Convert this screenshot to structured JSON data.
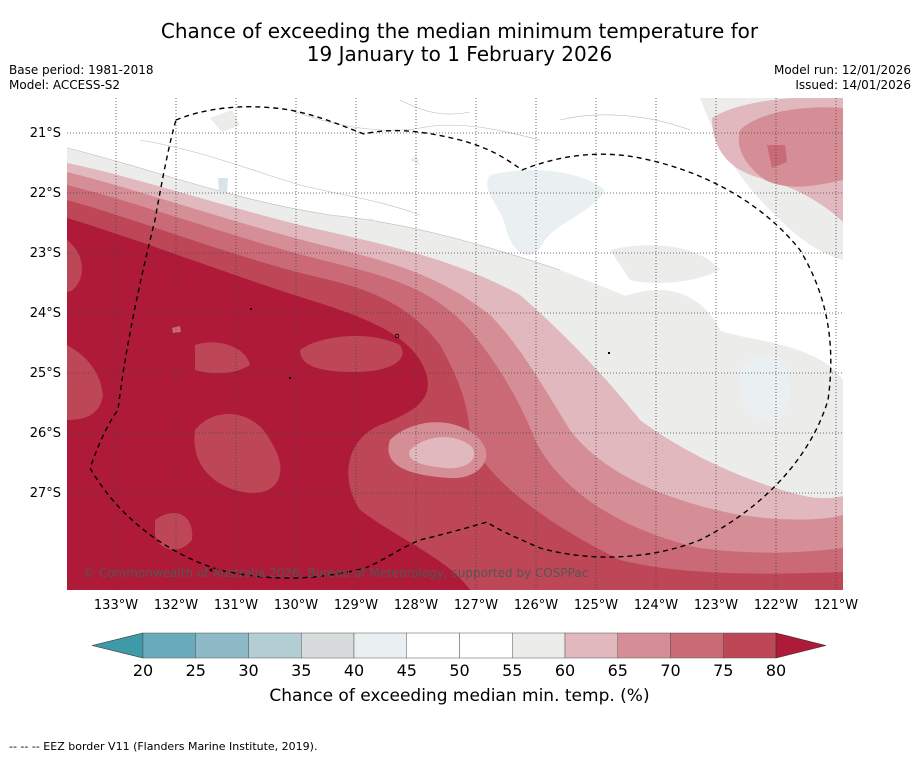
{
  "title": {
    "line1": "Chance of exceeding the median minimum temperature for",
    "line2": "19 January to 1 February 2026"
  },
  "meta": {
    "base_period": "Base period: 1981-2018",
    "model": "Model: ACCESS-S2",
    "model_run": "Model run: 12/01/2026",
    "issued": "Issued: 14/01/2026"
  },
  "map": {
    "latitudes": [
      "21°S",
      "22°S",
      "23°S",
      "24°S",
      "25°S",
      "26°S",
      "27°S"
    ],
    "longitudes": [
      "133°W",
      "132°W",
      "131°W",
      "130°W",
      "129°W",
      "128°W",
      "127°W",
      "126°W",
      "125°W",
      "124°W",
      "123°W",
      "122°W",
      "121°W"
    ],
    "copyright": "© Commonwealth of Australia 2026, Bureau of Meteorology, supported by COSPPac"
  },
  "colorbar": {
    "labels": [
      "20",
      "25",
      "30",
      "35",
      "40",
      "45",
      "50",
      "55",
      "60",
      "65",
      "70",
      "75",
      "80"
    ],
    "colors": [
      "#3e9aa8",
      "#6aabbb",
      "#8dbac6",
      "#b3ced3",
      "#d8dbdb",
      "#eaf0f2",
      "#ffffff",
      "#ffffff",
      "#ececea",
      "#e0b8be",
      "#d58e96",
      "#ca6a76",
      "#bd4756",
      "#ae1a38"
    ],
    "title": "Chance of exceeding median min. temp. (%)"
  },
  "footnote": "--  --  -- EEZ border V11 (Flanders Marine Institute, 2019)."
}
